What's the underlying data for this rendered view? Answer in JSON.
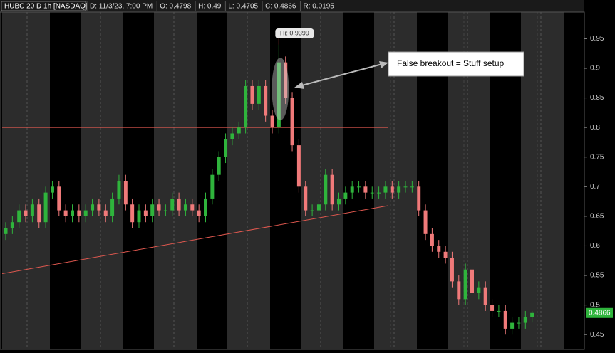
{
  "chart_data": {
    "type": "candlestick",
    "title": "HUBC 20 D 1h [NASDAQ]",
    "info": [
      "D: 11/3/23, 7:00 PM",
      "O: 0.4798",
      "H: 0.49",
      "L: 0.4705",
      "C: 0.4866",
      "R: 0.0195"
    ],
    "open": [
      0.62,
      0.63,
      0.64,
      0.66,
      0.65,
      0.67,
      0.64,
      0.69,
      0.7,
      0.66,
      0.65,
      0.66,
      0.65,
      0.66,
      0.67,
      0.66,
      0.65,
      0.68,
      0.71,
      0.67,
      0.64,
      0.66,
      0.65,
      0.67,
      0.66,
      0.66,
      0.68,
      0.66,
      0.67,
      0.66,
      0.65,
      0.68,
      0.72,
      0.75,
      0.78,
      0.79,
      0.8,
      0.87,
      0.84,
      0.87,
      0.82,
      0.8,
      0.91,
      0.85,
      0.77,
      0.7,
      0.66,
      0.66,
      0.67,
      0.72,
      0.67,
      0.68,
      0.69,
      0.7,
      0.7,
      0.69,
      0.69,
      0.69,
      0.7,
      0.69,
      0.7,
      0.7,
      0.7,
      0.66,
      0.62,
      0.6,
      0.59,
      0.58,
      0.54,
      0.51,
      0.56,
      0.52,
      0.53,
      0.5,
      0.49,
      0.49,
      0.46,
      0.47,
      0.47,
      0.4798
    ],
    "high": [
      0.64,
      0.65,
      0.67,
      0.67,
      0.68,
      0.68,
      0.7,
      0.71,
      0.71,
      0.67,
      0.67,
      0.67,
      0.67,
      0.68,
      0.68,
      0.67,
      0.69,
      0.72,
      0.72,
      0.68,
      0.67,
      0.67,
      0.68,
      0.68,
      0.67,
      0.69,
      0.69,
      0.68,
      0.68,
      0.67,
      0.69,
      0.73,
      0.76,
      0.79,
      0.8,
      0.81,
      0.88,
      0.88,
      0.88,
      0.88,
      0.83,
      0.9399,
      0.92,
      0.86,
      0.78,
      0.71,
      0.67,
      0.68,
      0.73,
      0.73,
      0.69,
      0.7,
      0.71,
      0.71,
      0.71,
      0.7,
      0.7,
      0.71,
      0.71,
      0.71,
      0.71,
      0.71,
      0.71,
      0.67,
      0.63,
      0.61,
      0.6,
      0.59,
      0.55,
      0.57,
      0.57,
      0.54,
      0.54,
      0.51,
      0.5,
      0.5,
      0.48,
      0.48,
      0.49,
      0.49
    ],
    "low": [
      0.61,
      0.62,
      0.63,
      0.64,
      0.64,
      0.63,
      0.63,
      0.68,
      0.65,
      0.64,
      0.64,
      0.64,
      0.64,
      0.65,
      0.65,
      0.64,
      0.64,
      0.67,
      0.66,
      0.63,
      0.63,
      0.64,
      0.64,
      0.65,
      0.65,
      0.65,
      0.65,
      0.65,
      0.65,
      0.64,
      0.64,
      0.67,
      0.71,
      0.74,
      0.77,
      0.78,
      0.79,
      0.83,
      0.83,
      0.81,
      0.79,
      0.79,
      0.84,
      0.76,
      0.69,
      0.65,
      0.65,
      0.65,
      0.66,
      0.66,
      0.66,
      0.67,
      0.68,
      0.69,
      0.68,
      0.68,
      0.68,
      0.68,
      0.68,
      0.68,
      0.69,
      0.69,
      0.65,
      0.61,
      0.59,
      0.58,
      0.57,
      0.53,
      0.5,
      0.5,
      0.51,
      0.51,
      0.49,
      0.48,
      0.48,
      0.45,
      0.45,
      0.46,
      0.46,
      0.4705
    ],
    "close": [
      0.63,
      0.64,
      0.66,
      0.65,
      0.67,
      0.64,
      0.69,
      0.7,
      0.66,
      0.65,
      0.66,
      0.65,
      0.66,
      0.67,
      0.66,
      0.65,
      0.68,
      0.71,
      0.67,
      0.64,
      0.66,
      0.65,
      0.67,
      0.66,
      0.66,
      0.68,
      0.66,
      0.67,
      0.66,
      0.65,
      0.68,
      0.72,
      0.75,
      0.78,
      0.79,
      0.8,
      0.87,
      0.84,
      0.87,
      0.82,
      0.8,
      0.91,
      0.85,
      0.77,
      0.7,
      0.66,
      0.66,
      0.67,
      0.72,
      0.67,
      0.68,
      0.69,
      0.7,
      0.7,
      0.69,
      0.69,
      0.69,
      0.7,
      0.69,
      0.7,
      0.7,
      0.7,
      0.66,
      0.62,
      0.6,
      0.59,
      0.58,
      0.54,
      0.51,
      0.56,
      0.52,
      0.53,
      0.5,
      0.49,
      0.49,
      0.46,
      0.47,
      0.47,
      0.48,
      0.4866
    ],
    "up_color": "#2fb43c",
    "down_color": "#f07a7a",
    "ylim": [
      0.425,
      0.995
    ],
    "yticks": [
      0.45,
      0.5,
      0.55,
      0.6,
      0.65,
      0.7,
      0.75,
      0.8,
      0.85,
      0.9,
      0.95
    ],
    "last_label": "0.4866",
    "resistance": 0.8,
    "trendline": [
      0.553,
      0.668
    ],
    "line_color": "#e0584f",
    "high_label": "Hi: 0.9399",
    "annotation": "False breakout = Stuff setup"
  }
}
